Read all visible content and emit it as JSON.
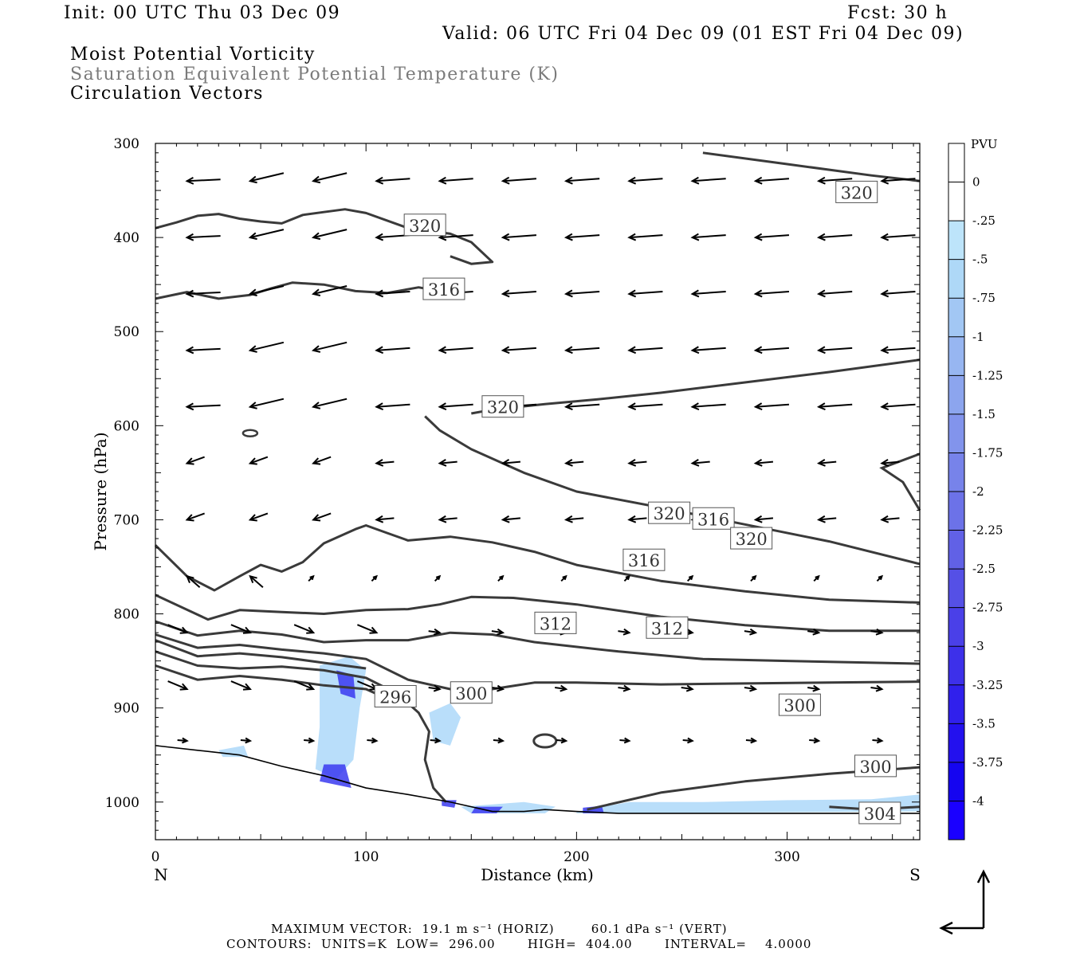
{
  "header": {
    "init": "Init: 00 UTC Thu 03 Dec 09",
    "fcst": "Fcst:   30 h",
    "valid": "Valid: 06 UTC Fri 04 Dec 09 (01 EST Fri 04 Dec 09)",
    "field1": "Moist Potential Vorticity",
    "field2": "Saturation Equivalent Potential Temperature (K)",
    "field3": "Circulation Vectors"
  },
  "chart_data": {
    "type": "cross-section",
    "xlabel": "Distance (km)",
    "ylabel": "Pressure (hPa)",
    "xlim": [
      0,
      363
    ],
    "ylim": [
      1040,
      300
    ],
    "x_ticks": [
      0,
      100,
      200,
      300
    ],
    "y_ticks": [
      300,
      400,
      500,
      600,
      700,
      800,
      900,
      1000
    ],
    "left_end_label": "N",
    "right_end_label": "S",
    "colorbar": {
      "unit": "PVU",
      "levels": [
        "0",
        "-.25",
        "-.5",
        "-.75",
        "-1",
        "-1.25",
        "-1.5",
        "-1.75",
        "-2",
        "-2.25",
        "-2.5",
        "-2.75",
        "-3",
        "-3.25",
        "-3.5",
        "-3.75",
        "-4"
      ],
      "colors": [
        "#ffffff",
        "#ffffff",
        "#bde4fa",
        "#aed8f7",
        "#a2c7f4",
        "#97b6f1",
        "#8ca5ee",
        "#8294ec",
        "#7783ea",
        "#6c72e8",
        "#6161e6",
        "#5550e6",
        "#4a40e8",
        "#3d30ea",
        "#3020ec",
        "#2311ee",
        "#1505f0",
        "#1a00ff"
      ]
    },
    "theta_contours": [
      {
        "label": "296",
        "points": [
          [
            0,
            840
          ],
          [
            20,
            855
          ],
          [
            40,
            858
          ],
          [
            60,
            856
          ],
          [
            80,
            860
          ],
          [
            100,
            868
          ],
          [
            115,
            885
          ],
          [
            125,
            905
          ],
          [
            130,
            925
          ],
          [
            128,
            955
          ],
          [
            132,
            985
          ],
          [
            138,
            1000
          ]
        ]
      },
      {
        "label": "300",
        "points": [
          [
            0,
            822
          ],
          [
            20,
            836
          ],
          [
            40,
            833
          ],
          [
            60,
            838
          ],
          [
            80,
            842
          ],
          [
            100,
            848
          ],
          [
            120,
            870
          ],
          [
            140,
            880
          ],
          [
            160,
            880
          ],
          [
            180,
            873
          ],
          [
            200,
            873
          ],
          [
            240,
            875
          ],
          [
            280,
            874
          ],
          [
            320,
            873
          ],
          [
            363,
            872
          ]
        ]
      },
      {
        "label": "300",
        "points": [
          [
            205,
            1008
          ],
          [
            240,
            990
          ],
          [
            280,
            978
          ],
          [
            320,
            970
          ],
          [
            363,
            963
          ]
        ]
      },
      {
        "label": "304",
        "points": [
          [
            320,
            1005
          ],
          [
            340,
            1008
          ],
          [
            363,
            1005
          ]
        ]
      },
      {
        "label": "",
        "points": [
          [
            0,
            808
          ],
          [
            20,
            823
          ],
          [
            40,
            818
          ],
          [
            60,
            822
          ],
          [
            80,
            830
          ],
          [
            100,
            828
          ],
          [
            120,
            828
          ],
          [
            140,
            820
          ],
          [
            160,
            822
          ],
          [
            180,
            830
          ],
          [
            220,
            840
          ],
          [
            260,
            848
          ],
          [
            300,
            850
          ],
          [
            363,
            853
          ]
        ]
      },
      {
        "label": "312",
        "points": [
          [
            0,
            780
          ],
          [
            25,
            806
          ],
          [
            40,
            796
          ],
          [
            60,
            798
          ],
          [
            80,
            800
          ],
          [
            100,
            796
          ],
          [
            120,
            795
          ],
          [
            135,
            790
          ],
          [
            150,
            782
          ],
          [
            170,
            783
          ],
          [
            200,
            790
          ],
          [
            240,
            803
          ],
          [
            280,
            812
          ],
          [
            320,
            818
          ],
          [
            363,
            818
          ]
        ]
      },
      {
        "label": "316",
        "points": [
          [
            0,
            727
          ],
          [
            15,
            760
          ],
          [
            28,
            775
          ],
          [
            40,
            760
          ],
          [
            50,
            748
          ],
          [
            60,
            755
          ],
          [
            70,
            745
          ],
          [
            80,
            725
          ],
          [
            95,
            710
          ],
          [
            100,
            706
          ],
          [
            110,
            714
          ],
          [
            120,
            722
          ],
          [
            140,
            718
          ],
          [
            160,
            724
          ],
          [
            180,
            734
          ],
          [
            200,
            748
          ],
          [
            240,
            765
          ],
          [
            280,
            776
          ],
          [
            320,
            785
          ],
          [
            363,
            788
          ]
        ]
      },
      {
        "label": "320",
        "points": [
          [
            0,
            390
          ],
          [
            10,
            384
          ],
          [
            20,
            377
          ],
          [
            30,
            375
          ],
          [
            40,
            380
          ],
          [
            50,
            383
          ],
          [
            60,
            385
          ],
          [
            70,
            376
          ],
          [
            80,
            373
          ],
          [
            90,
            370
          ],
          [
            100,
            374
          ],
          [
            120,
            390
          ],
          [
            140,
            396
          ],
          [
            150,
            405
          ],
          [
            160,
            426
          ],
          [
            150,
            428
          ],
          [
            140,
            420
          ]
        ]
      },
      {
        "label": "316",
        "points": [
          [
            0,
            465
          ],
          [
            15,
            458
          ],
          [
            30,
            465
          ],
          [
            45,
            461
          ],
          [
            55,
            454
          ],
          [
            65,
            448
          ],
          [
            80,
            450
          ],
          [
            95,
            457
          ],
          [
            110,
            459
          ],
          [
            125,
            453
          ],
          [
            140,
            459
          ]
        ]
      },
      {
        "label": "320",
        "points": [
          [
            150,
            587
          ],
          [
            160,
            583
          ],
          [
            185,
            577
          ],
          [
            210,
            572
          ],
          [
            240,
            565
          ],
          [
            280,
            554
          ],
          [
            320,
            543
          ],
          [
            363,
            530
          ]
        ]
      },
      {
        "label": "320",
        "points": [
          [
            128,
            590
          ],
          [
            135,
            605
          ],
          [
            150,
            625
          ],
          [
            175,
            650
          ],
          [
            200,
            670
          ],
          [
            240,
            687
          ],
          [
            280,
            705
          ],
          [
            320,
            723
          ],
          [
            363,
            747
          ]
        ]
      },
      {
        "label": "320",
        "points": [
          [
            260,
            310
          ],
          [
            300,
            322
          ],
          [
            340,
            334
          ],
          [
            363,
            340
          ]
        ]
      }
    ],
    "vectors_note": "Circulation vectors: mostly westward (toward N) above 600 hPa, weakening below; southward near surface.",
    "footer": {
      "max_vector": "MAXIMUM VECTOR:  19.1 m s⁻¹ (HORIZ)        60.1 dPa s⁻¹ (VERT)",
      "contours": "CONTOURS:  UNITS=K  LOW=  296.00       HIGH=  404.00       INTERVAL=    4.0000"
    }
  }
}
